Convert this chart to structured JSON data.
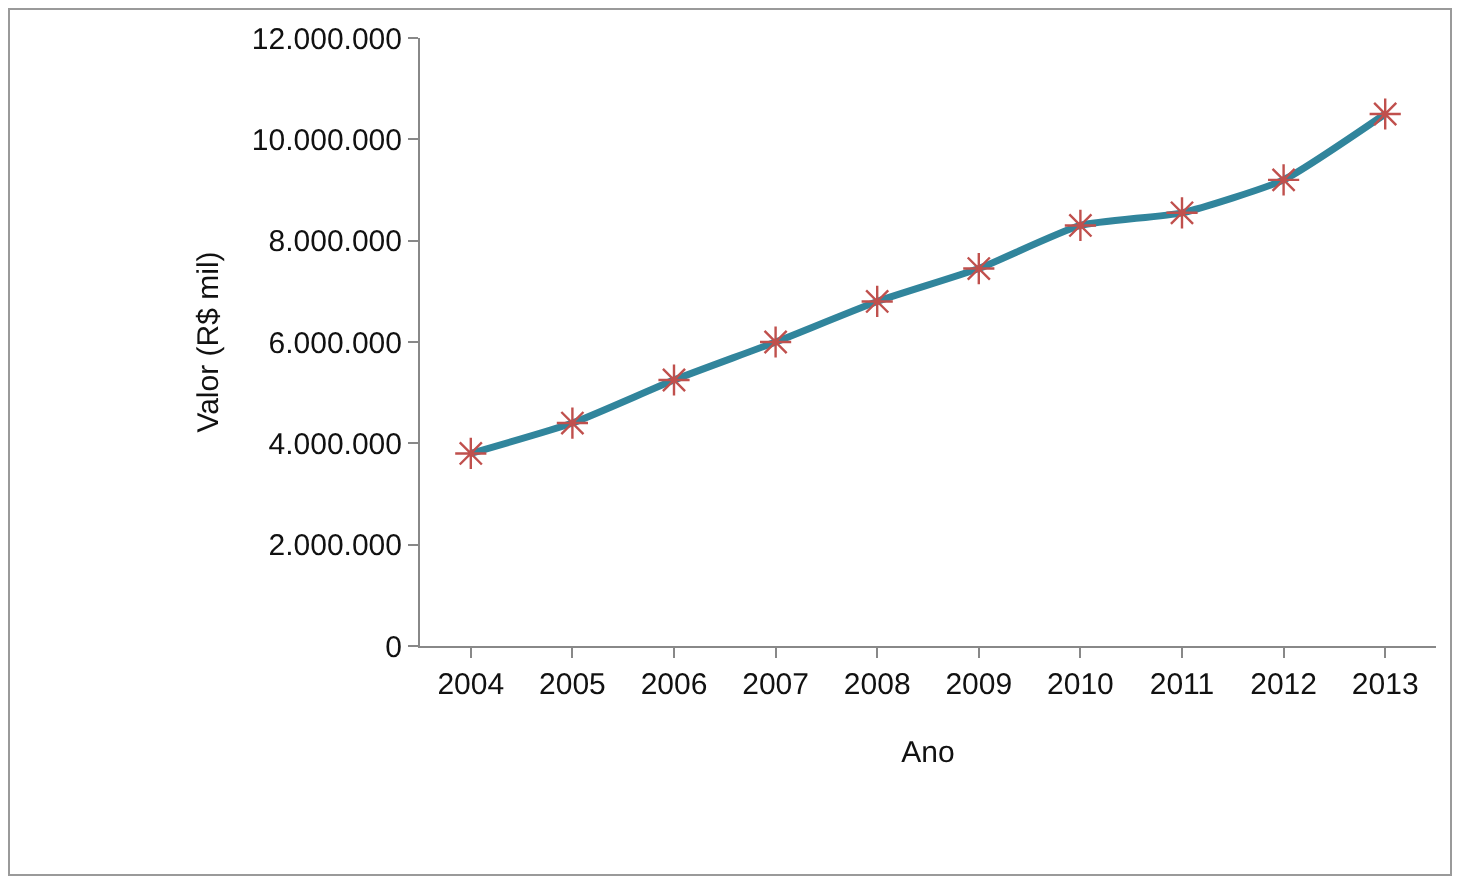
{
  "chart_data": {
    "type": "line",
    "xlabel": "Ano",
    "ylabel": "Valor (R$ mil)",
    "categories": [
      "2004",
      "2005",
      "2006",
      "2007",
      "2008",
      "2009",
      "2010",
      "2011",
      "2012",
      "2013"
    ],
    "series": [
      {
        "color": "#31859c",
        "colors": [
          "#c0504d",
          "#c0504d",
          "#c0504d",
          "#c0504d",
          "#c0504d",
          "#c0504d",
          "#c0504d",
          "#c0504d",
          "#c0504d",
          "#c0504d"
        ],
        "values": [
          3800000,
          4400000,
          5250000,
          6000000,
          6800000,
          7450000,
          8300000,
          8550000,
          9200000,
          10500000
        ]
      }
    ],
    "ylim": [
      0,
      12000000
    ],
    "yticks": [
      0,
      {
        "value": 2000000,
        "label": "2.000.000"
      },
      {
        "value": 4000000,
        "label": "4.000.000"
      },
      {
        "value": 6000000,
        "label": "6.000.000"
      },
      {
        "value": 8000000,
        "label": "8.000.000"
      },
      {
        "value": 10000000,
        "label": "10.000.000"
      },
      {
        "value": 12000000,
        "label": "12.000.000"
      }
    ],
    "grid": false,
    "marker": "cross",
    "line_style": "solid"
  }
}
